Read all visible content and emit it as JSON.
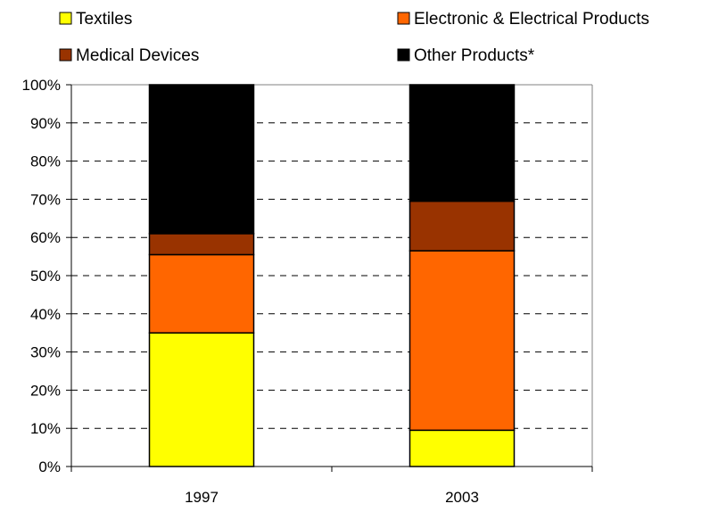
{
  "chart_data": {
    "type": "bar",
    "stacked": true,
    "percent_scale": true,
    "categories": [
      "1997",
      "2003"
    ],
    "series": [
      {
        "name": "Textiles",
        "color": "#FFFF00",
        "values": [
          35,
          9.5
        ]
      },
      {
        "name": "Electronic & Electrical Products",
        "color": "#FF6600",
        "values": [
          20.5,
          47
        ]
      },
      {
        "name": "Medical Devices",
        "color": "#993300",
        "values": [
          5.5,
          13
        ]
      },
      {
        "name": "Other Products*",
        "color": "#000000",
        "values": [
          39,
          30.5
        ]
      }
    ],
    "ylim": [
      0,
      100
    ],
    "yticks": [
      "0%",
      "10%",
      "20%",
      "30%",
      "40%",
      "50%",
      "60%",
      "70%",
      "80%",
      "90%",
      "100%"
    ],
    "grid": true,
    "grid_style": "dashed",
    "legend_position": "top"
  }
}
